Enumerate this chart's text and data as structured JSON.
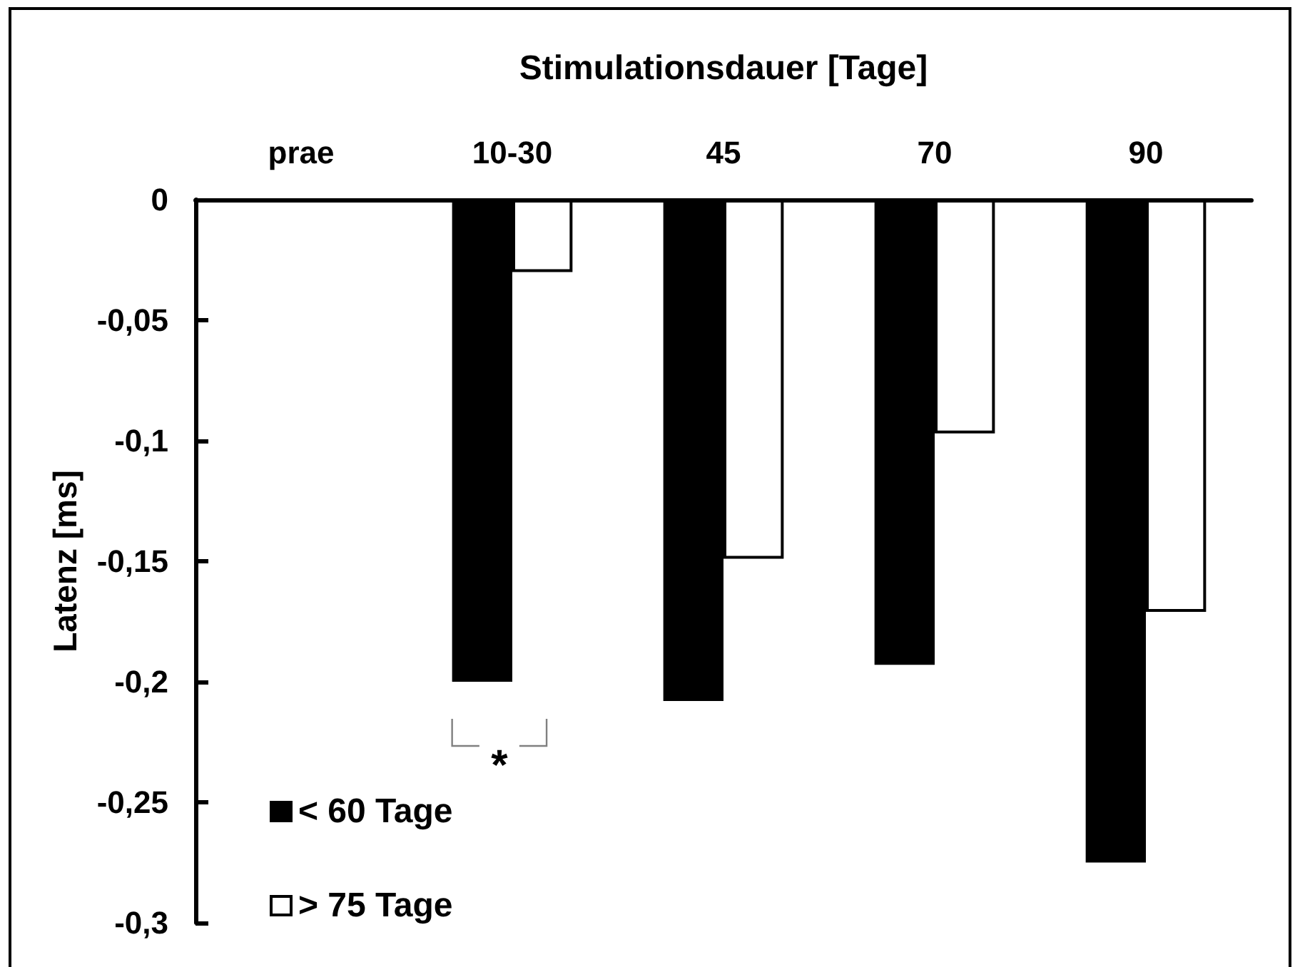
{
  "chart_data": {
    "type": "bar",
    "xlabel": "Stimulationsdauer [Tage]",
    "ylabel": "Latenz [ms]",
    "categories": [
      "prae",
      "10-30",
      "45",
      "70",
      "90"
    ],
    "series": [
      {
        "name": "< 60 Tage",
        "color": "#000000",
        "values": [
          null,
          -0.2,
          -0.208,
          -0.193,
          -0.275
        ]
      },
      {
        "name": "> 75 Tage",
        "color": "#ffffff",
        "values": [
          null,
          -0.03,
          -0.149,
          -0.097,
          -0.171
        ]
      }
    ],
    "ylim": [
      -0.3,
      0
    ],
    "yticks": [
      {
        "value": -0.3,
        "label": "-0,3"
      },
      {
        "value": -0.25,
        "label": "-0,25"
      },
      {
        "value": -0.2,
        "label": "-0,2"
      },
      {
        "value": -0.15,
        "label": "-0,15"
      },
      {
        "value": -0.1,
        "label": "-0,1"
      },
      {
        "value": -0.05,
        "label": "-0,05"
      },
      0
    ],
    "grid": false,
    "legend": "bottom left",
    "annotations": [
      "*"
    ]
  }
}
